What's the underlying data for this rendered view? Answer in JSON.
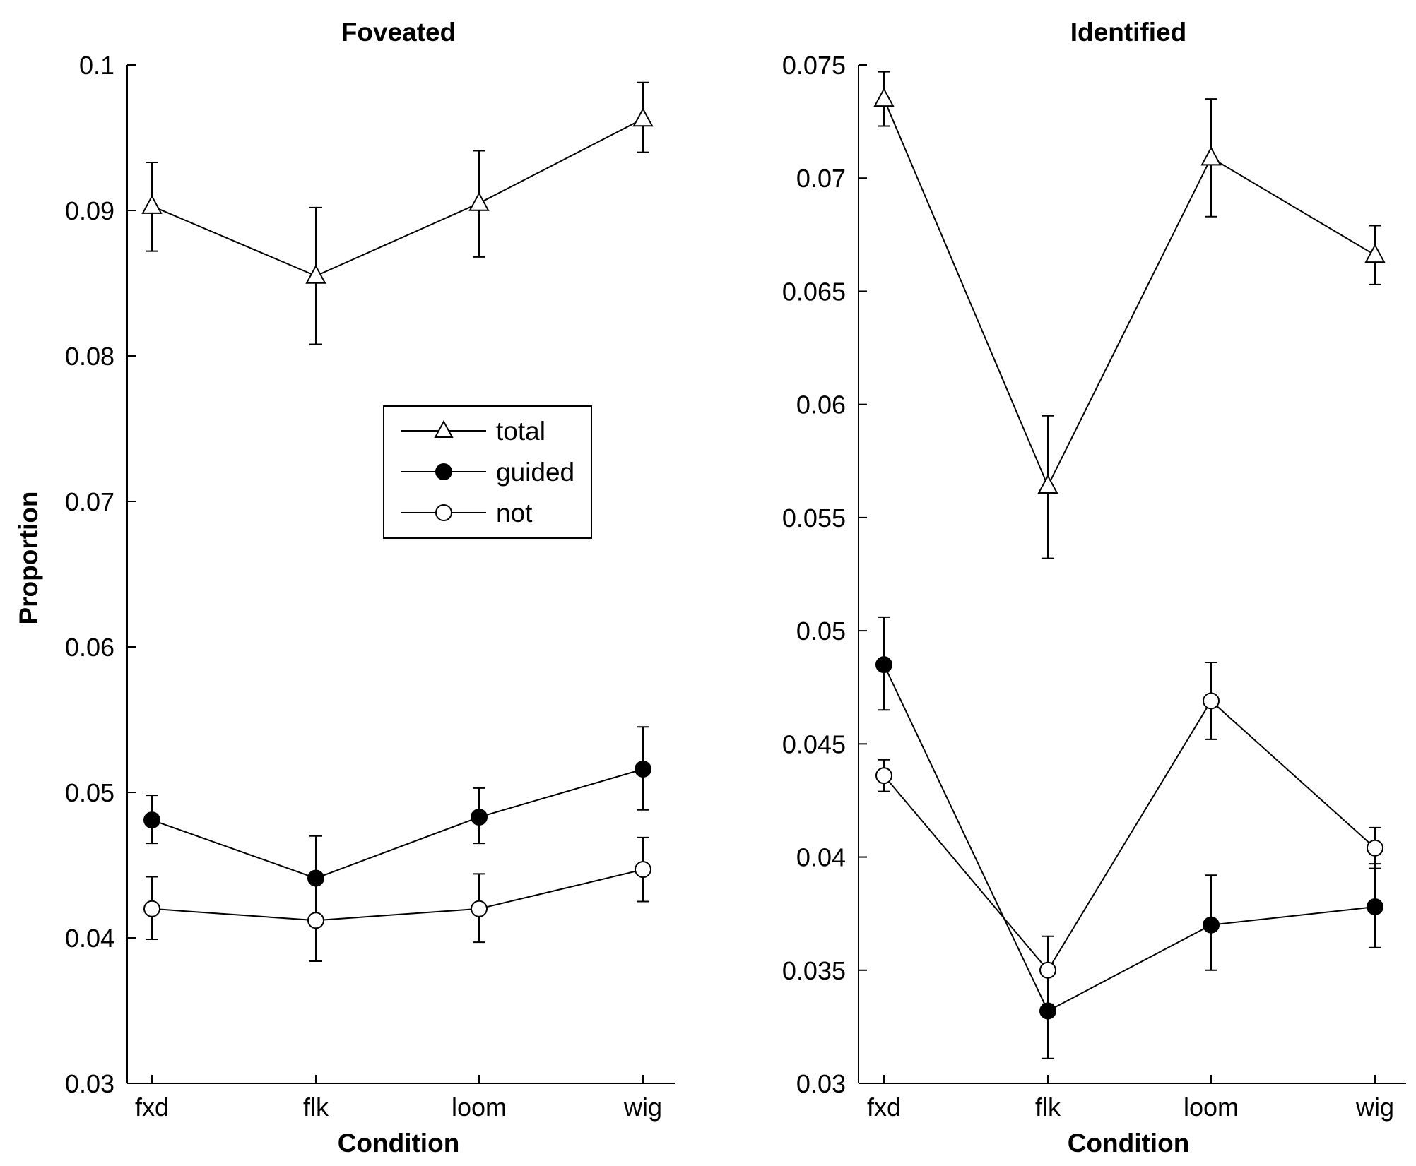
{
  "chart_data": [
    {
      "type": "line",
      "title": "Foveated",
      "xlabel": "Condition",
      "ylabel": "Proportion",
      "categories": [
        "fxd",
        "flk",
        "loom",
        "wig"
      ],
      "ylim": [
        0.03,
        0.1
      ],
      "yticks": [
        "0.03",
        "0.04",
        "0.05",
        "0.06",
        "0.07",
        "0.08",
        "0.09",
        "0.1"
      ],
      "legend": {
        "position": "center",
        "entries": [
          {
            "label": "total",
            "marker": "triangle-open"
          },
          {
            "label": "guided",
            "marker": "circle-filled"
          },
          {
            "label": "not",
            "marker": "circle-open"
          }
        ]
      },
      "series": [
        {
          "name": "total",
          "marker": "triangle-open",
          "values": [
            0.0903,
            0.0855,
            0.0905,
            0.0963
          ],
          "lower": [
            0.0872,
            0.0808,
            0.0868,
            0.094
          ],
          "upper": [
            0.0933,
            0.0902,
            0.0941,
            0.0988
          ]
        },
        {
          "name": "guided",
          "marker": "circle-filled",
          "values": [
            0.0481,
            0.0441,
            0.0483,
            0.0516
          ],
          "lower": [
            0.0465,
            0.0413,
            0.0465,
            0.0488
          ],
          "upper": [
            0.0498,
            0.047,
            0.0503,
            0.0545
          ]
        },
        {
          "name": "not",
          "marker": "circle-open",
          "values": [
            0.042,
            0.0412,
            0.042,
            0.0447
          ],
          "lower": [
            0.0399,
            0.0384,
            0.0397,
            0.0425
          ],
          "upper": [
            0.0442,
            0.0441,
            0.0444,
            0.0469
          ]
        }
      ]
    },
    {
      "type": "line",
      "title": "Identified",
      "xlabel": "Condition",
      "ylabel": "",
      "categories": [
        "fxd",
        "flk",
        "loom",
        "wig"
      ],
      "ylim": [
        0.03,
        0.075
      ],
      "yticks": [
        "0.03",
        "0.035",
        "0.04",
        "0.045",
        "0.05",
        "0.055",
        "0.06",
        "0.065",
        "0.07",
        "0.075"
      ],
      "series": [
        {
          "name": "total",
          "marker": "triangle-open",
          "values": [
            0.0735,
            0.0564,
            0.0709,
            0.0666
          ],
          "lower": [
            0.0723,
            0.0532,
            0.0683,
            0.0653
          ],
          "upper": [
            0.0747,
            0.0595,
            0.0735,
            0.0679
          ]
        },
        {
          "name": "guided",
          "marker": "circle-filled",
          "values": [
            0.0485,
            0.0332,
            0.037,
            0.0378
          ],
          "lower": [
            0.0465,
            0.0311,
            0.035,
            0.036
          ],
          "upper": [
            0.0506,
            0.0353,
            0.0392,
            0.0397
          ]
        },
        {
          "name": "not",
          "marker": "circle-open",
          "values": [
            0.0436,
            0.035,
            0.0469,
            0.0404
          ],
          "lower": [
            0.0429,
            0.0335,
            0.0452,
            0.0395
          ],
          "upper": [
            0.0443,
            0.0365,
            0.0486,
            0.0413
          ]
        }
      ]
    }
  ]
}
